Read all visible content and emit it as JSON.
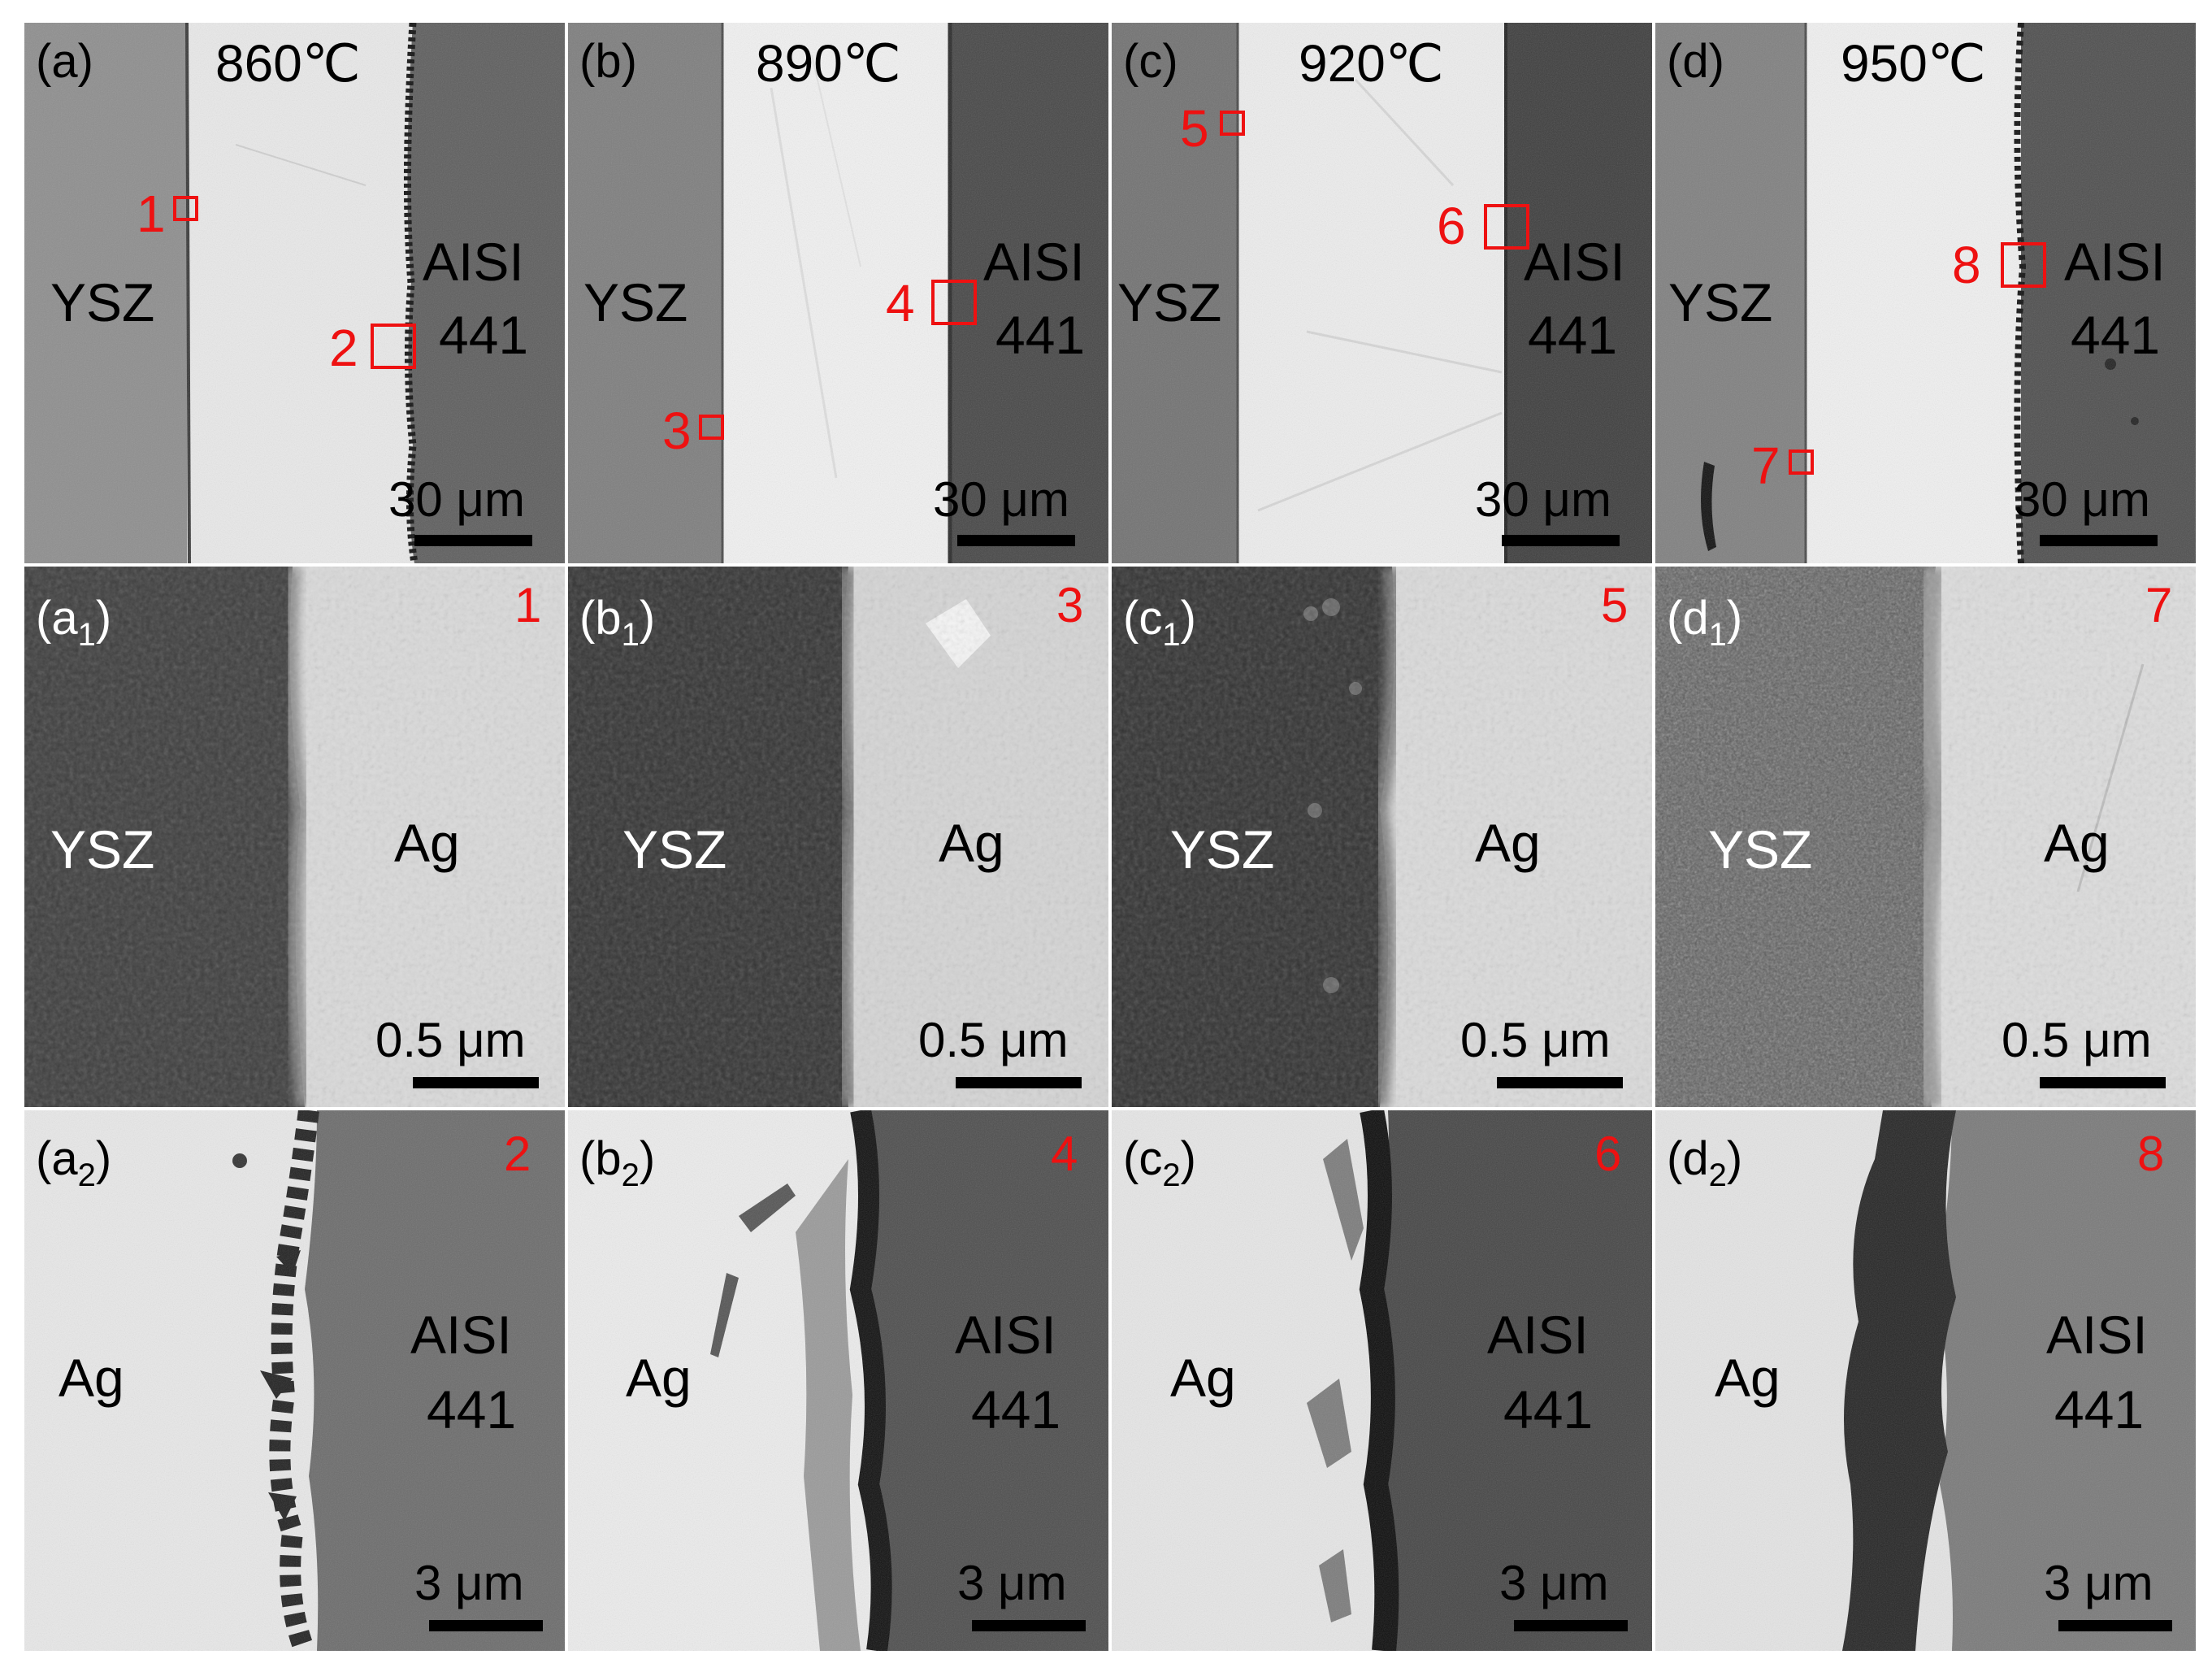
{
  "figure": {
    "columns": [
      {
        "top": {
          "label": "(a)",
          "temperature": "860℃",
          "left_phase": "YSZ",
          "right_phase_line1": "AISI",
          "right_phase_line2": "441",
          "scale": "30 μm",
          "marker_a": "1",
          "marker_b": "2"
        },
        "middle": {
          "label_main": "(a",
          "label_sub": "1",
          "label_close": ")",
          "marker": "1",
          "left_phase": "YSZ",
          "right_phase": "Ag",
          "scale": "0.5 μm"
        },
        "bottom": {
          "label_main": "(a",
          "label_sub": "2",
          "label_close": ")",
          "marker": "2",
          "left_phase": "Ag",
          "right_phase_line1": "AISI",
          "right_phase_line2": "441",
          "scale": "3 μm"
        }
      },
      {
        "top": {
          "label": "(b)",
          "temperature": "890℃",
          "left_phase": "YSZ",
          "right_phase_line1": "AISI",
          "right_phase_line2": "441",
          "scale": "30 μm",
          "marker_a": "3",
          "marker_b": "4"
        },
        "middle": {
          "label_main": "(b",
          "label_sub": "1",
          "label_close": ")",
          "marker": "3",
          "left_phase": "YSZ",
          "right_phase": "Ag",
          "scale": "0.5 μm"
        },
        "bottom": {
          "label_main": "(b",
          "label_sub": "2",
          "label_close": ")",
          "marker": "4",
          "left_phase": "Ag",
          "right_phase_line1": "AISI",
          "right_phase_line2": "441",
          "scale": "3 μm"
        }
      },
      {
        "top": {
          "label": "(c)",
          "temperature": "920℃",
          "left_phase": "YSZ",
          "right_phase_line1": "AISI",
          "right_phase_line2": "441",
          "scale": "30 μm",
          "marker_a": "5",
          "marker_b": "6"
        },
        "middle": {
          "label_main": "(c",
          "label_sub": "1",
          "label_close": ")",
          "marker": "5",
          "left_phase": "YSZ",
          "right_phase": "Ag",
          "scale": "0.5 μm"
        },
        "bottom": {
          "label_main": "(c",
          "label_sub": "2",
          "label_close": ")",
          "marker": "6",
          "left_phase": "Ag",
          "right_phase_line1": "AISI",
          "right_phase_line2": "441",
          "scale": "3 μm"
        }
      },
      {
        "top": {
          "label": "(d)",
          "temperature": "950℃",
          "left_phase": "YSZ",
          "right_phase_line1": "AISI",
          "right_phase_line2": "441",
          "scale": "30 μm",
          "marker_a": "7",
          "marker_b": "8"
        },
        "middle": {
          "label_main": "(d",
          "label_sub": "1",
          "label_close": ")",
          "marker": "7",
          "left_phase": "YSZ",
          "right_phase": "Ag",
          "scale": "0.5 μm"
        },
        "bottom": {
          "label_main": "(d",
          "label_sub": "2",
          "label_close": ")",
          "marker": "8",
          "left_phase": "Ag",
          "right_phase_line1": "AISI",
          "right_phase_line2": "441",
          "scale": "3 μm"
        }
      }
    ],
    "colors": {
      "marker_red": "#ee1111",
      "ysz_gray": "#8a8a8a",
      "ag_white": "#e8e8e8",
      "steel_dark": "#5a5a5a"
    }
  }
}
